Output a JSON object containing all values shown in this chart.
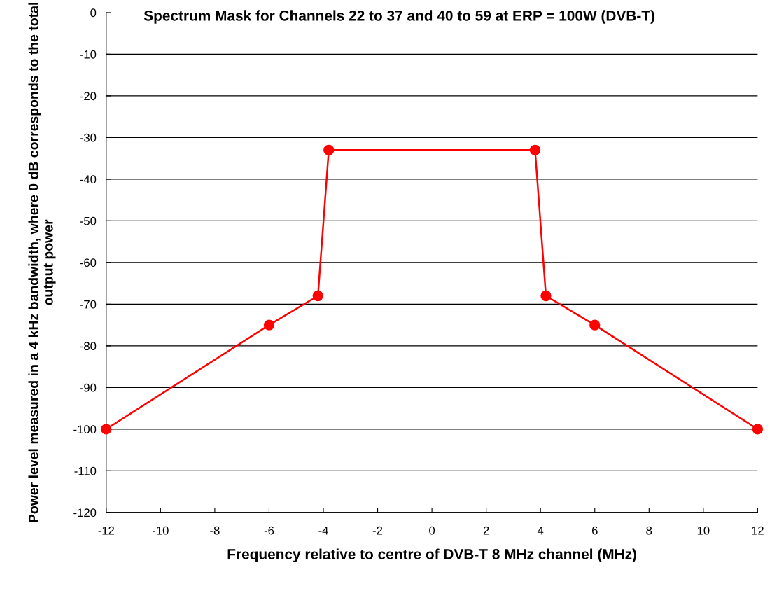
{
  "chart_data": {
    "type": "line",
    "title": "Spectrum Mask for Channels 22 to 37 and 40 to 59 at ERP = 100W (DVB-T)",
    "xlabel": "Frequency relative to centre of DVB-T 8 MHz channel (MHz)",
    "ylabel": "Power level measured in a 4 kHz bandwidth, where 0 dB corresponds to the total output power",
    "x": [
      -12,
      -6,
      -4.2,
      -3.8,
      3.8,
      4.2,
      6,
      12
    ],
    "series": [
      {
        "color": "#ff0000",
        "values": [
          -100,
          -75,
          -68,
          -33,
          -33,
          -68,
          -75,
          -100
        ]
      }
    ],
    "xlim": [
      -12,
      12
    ],
    "xticks": [
      -12,
      -10,
      -8,
      -6,
      -4,
      -2,
      0,
      2,
      4,
      6,
      8,
      10,
      12
    ],
    "ylim": [
      -120,
      0
    ],
    "yticks": [
      -120,
      -110,
      -100,
      -90,
      -80,
      -70,
      -60,
      -50,
      -40,
      -30,
      -20,
      -10,
      0
    ],
    "grid": "y",
    "marker": "circle",
    "line_style": "solid",
    "legend": false
  }
}
